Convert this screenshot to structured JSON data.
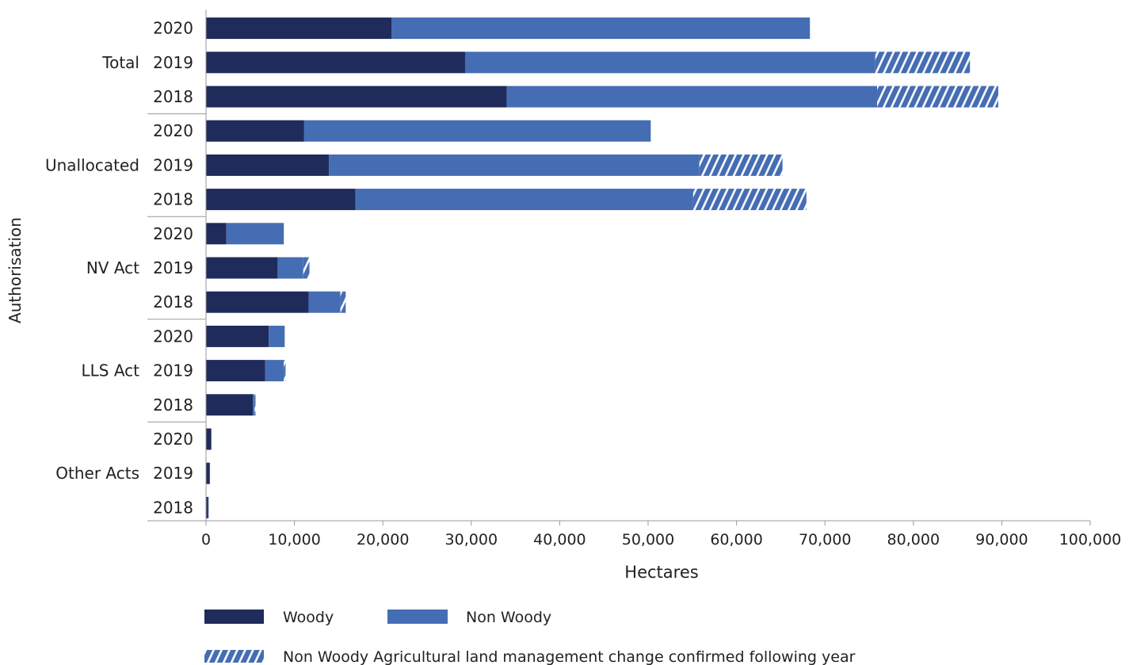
{
  "chart_data": {
    "type": "bar",
    "orientation": "horizontal",
    "stacked": true,
    "xlabel": "Hectares",
    "ylabel": "Authorisation",
    "xlim": [
      0,
      100000
    ],
    "xticks": [
      0,
      10000,
      20000,
      30000,
      40000,
      50000,
      60000,
      70000,
      80000,
      90000,
      100000
    ],
    "xtick_labels": [
      "0",
      "10,000",
      "20,000",
      "30,000",
      "40,000",
      "50,000",
      "60,000",
      "70,000",
      "80,000",
      "90,000",
      "100,000"
    ],
    "grid": false,
    "legend_position": "bottom",
    "groups": [
      {
        "label": "Total",
        "bars": [
          {
            "year": "2020",
            "woody": 21000,
            "non_woody": 47300,
            "confirmed_following_year": 0
          },
          {
            "year": "2019",
            "woody": 29300,
            "non_woody": 46400,
            "confirmed_following_year": 10700
          },
          {
            "year": "2018",
            "woody": 34000,
            "non_woody": 41900,
            "confirmed_following_year": 13700
          }
        ]
      },
      {
        "label": "Unallocated",
        "bars": [
          {
            "year": "2020",
            "woody": 11100,
            "non_woody": 39200,
            "confirmed_following_year": 0
          },
          {
            "year": "2019",
            "woody": 13900,
            "non_woody": 41900,
            "confirmed_following_year": 9400
          },
          {
            "year": "2018",
            "woody": 16900,
            "non_woody": 38200,
            "confirmed_following_year": 12800
          }
        ]
      },
      {
        "label": "NV Act",
        "bars": [
          {
            "year": "2020",
            "woody": 2300,
            "non_woody": 6500,
            "confirmed_following_year": 0
          },
          {
            "year": "2019",
            "woody": 8100,
            "non_woody": 2900,
            "confirmed_following_year": 700
          },
          {
            "year": "2018",
            "woody": 11600,
            "non_woody": 3600,
            "confirmed_following_year": 600
          }
        ]
      },
      {
        "label": "LLS Act",
        "bars": [
          {
            "year": "2020",
            "woody": 7100,
            "non_woody": 1800,
            "confirmed_following_year": 0
          },
          {
            "year": "2019",
            "woody": 6700,
            "non_woody": 2100,
            "confirmed_following_year": 200
          },
          {
            "year": "2018",
            "woody": 5300,
            "non_woody": 200,
            "confirmed_following_year": 100
          }
        ]
      },
      {
        "label": "Other Acts",
        "bars": [
          {
            "year": "2020",
            "woody": 600,
            "non_woody": 0,
            "confirmed_following_year": 0
          },
          {
            "year": "2019",
            "woody": 400,
            "non_woody": 50,
            "confirmed_following_year": 0
          },
          {
            "year": "2018",
            "woody": 250,
            "non_woody": 30,
            "confirmed_following_year": 0
          }
        ]
      }
    ],
    "series": [
      {
        "key": "woody",
        "name": "Woody",
        "color": "#1f2b5b"
      },
      {
        "key": "non_woody",
        "name": "Non Woody",
        "color": "#456db3"
      },
      {
        "key": "confirmed_following_year",
        "name": "Non Woody Agricultural land management change confirmed following year",
        "color": "#456db3",
        "pattern": "hatch"
      }
    ]
  }
}
